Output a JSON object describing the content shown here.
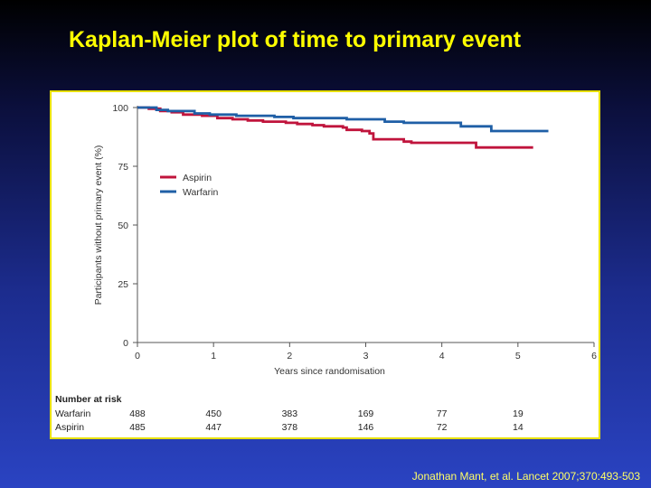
{
  "slide": {
    "title": "Kaplan-Meier plot of time to primary event",
    "citation": "Jonathan Mant, et al. Lancet 2007;370:493-503"
  },
  "colors": {
    "aspirin": "#c0143c",
    "warfarin": "#1f5fa6",
    "title": "#ffff00",
    "frame_border": "#e8e000"
  },
  "chart_data": {
    "type": "line",
    "step": true,
    "xlabel": "Years since randomisation",
    "ylabel": "Participants without primary event (%)",
    "xlim": [
      0,
      6
    ],
    "ylim": [
      0,
      100
    ],
    "x_ticks": [
      "0",
      "1",
      "2",
      "3",
      "4",
      "5",
      "6"
    ],
    "y_ticks": [
      "0",
      "25",
      "50",
      "75",
      "100"
    ],
    "legend_position": "upper-left",
    "series": [
      {
        "name": "Aspirin",
        "color": "#c0143c",
        "points": [
          [
            0,
            100
          ],
          [
            0.15,
            99.5
          ],
          [
            0.3,
            98.5
          ],
          [
            0.45,
            98
          ],
          [
            0.6,
            97
          ],
          [
            0.85,
            96.5
          ],
          [
            1.05,
            95.5
          ],
          [
            1.25,
            95
          ],
          [
            1.45,
            94.5
          ],
          [
            1.65,
            94
          ],
          [
            1.95,
            93.5
          ],
          [
            2.1,
            93
          ],
          [
            2.3,
            92.5
          ],
          [
            2.45,
            92
          ],
          [
            2.7,
            91.5
          ],
          [
            2.75,
            90.5
          ],
          [
            2.95,
            90
          ],
          [
            3.05,
            89
          ],
          [
            3.1,
            86.5
          ],
          [
            3.5,
            85.5
          ],
          [
            3.6,
            85
          ],
          [
            4.45,
            83
          ],
          [
            5.2,
            83
          ]
        ]
      },
      {
        "name": "Warfarin",
        "color": "#1f5fa6",
        "points": [
          [
            0,
            100
          ],
          [
            0.25,
            99
          ],
          [
            0.4,
            98.5
          ],
          [
            0.75,
            97.5
          ],
          [
            0.95,
            97
          ],
          [
            1.3,
            96.5
          ],
          [
            1.8,
            96
          ],
          [
            2.05,
            95.5
          ],
          [
            2.4,
            95.5
          ],
          [
            2.75,
            95
          ],
          [
            3.25,
            94
          ],
          [
            3.5,
            93.5
          ],
          [
            4.15,
            93.5
          ],
          [
            4.25,
            92
          ],
          [
            4.65,
            90
          ],
          [
            5.4,
            90
          ]
        ]
      }
    ],
    "at_risk": {
      "header": "Number at risk",
      "times": [
        0,
        1,
        2,
        3,
        4,
        5
      ],
      "rows": [
        {
          "label": "Warfarin",
          "values": [
            "488",
            "450",
            "383",
            "169",
            "77",
            "19"
          ]
        },
        {
          "label": "Aspirin",
          "values": [
            "485",
            "447",
            "378",
            "146",
            "72",
            "14"
          ]
        }
      ]
    }
  }
}
